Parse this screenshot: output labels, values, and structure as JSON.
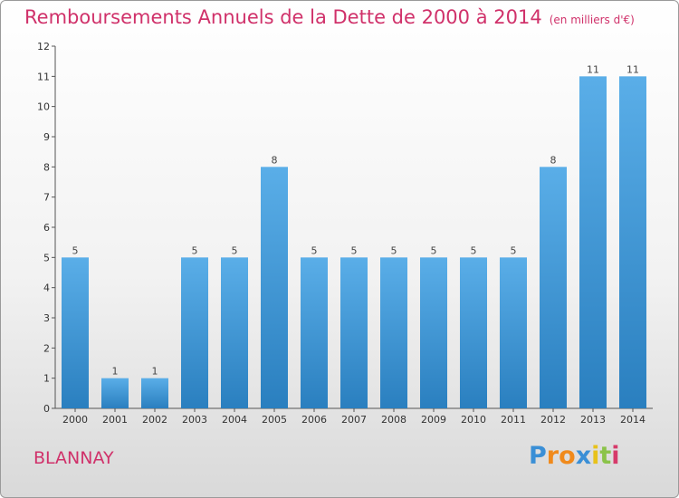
{
  "header": {
    "title": "Remboursements Annuels de la Dette de 2000 à 2014",
    "unit": "(en milliers d'€)"
  },
  "commune": "BLANNAY",
  "logo": {
    "letters": [
      "P",
      "r",
      "o",
      "x",
      "i",
      "t",
      "i"
    ],
    "colors": [
      "#3a8fd6",
      "#f08a1c",
      "#f08a1c",
      "#3a8fd6",
      "#e8c21a",
      "#8bc34a",
      "#d63a6a"
    ]
  },
  "chart_data": {
    "type": "bar",
    "title": "Remboursements Annuels de la Dette de 2000 à 2014",
    "categories": [
      "2000",
      "2001",
      "2002",
      "2003",
      "2004",
      "2005",
      "2006",
      "2007",
      "2008",
      "2009",
      "2010",
      "2011",
      "2012",
      "2013",
      "2014"
    ],
    "values": [
      5,
      1,
      1,
      5,
      5,
      8,
      5,
      5,
      5,
      5,
      5,
      5,
      8,
      11,
      11
    ],
    "data_labels": [
      "5",
      "1",
      "1",
      "5",
      "5",
      "8",
      "5",
      "5",
      "5",
      "5",
      "5",
      "5",
      "8",
      "11",
      "11"
    ],
    "yticks": [
      "0",
      "1",
      "2",
      "3",
      "4",
      "5",
      "6",
      "7",
      "8",
      "9",
      "10",
      "11",
      "12"
    ],
    "ylim": [
      0,
      12
    ],
    "grid": false,
    "bar_color_top": "#5aaee8",
    "bar_color_bottom": "#2a7fbf"
  }
}
